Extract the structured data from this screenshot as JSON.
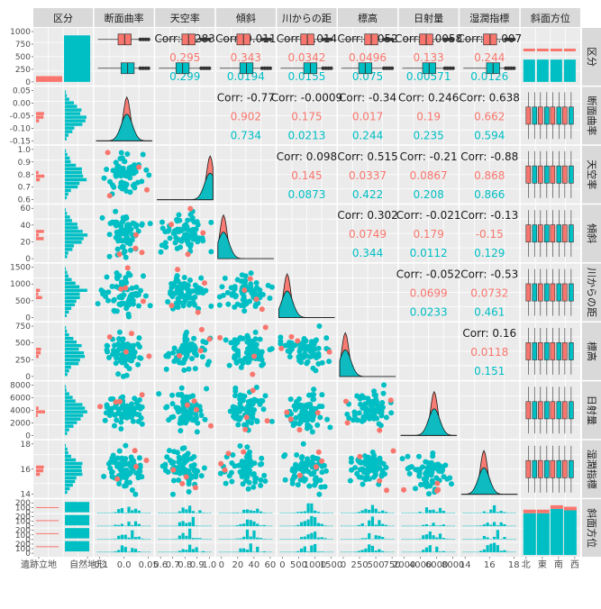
{
  "chart_data": {
    "type": "scatter",
    "title": "",
    "variables": [
      "区分",
      "断面曲率",
      "天空率",
      "傾斜",
      "川からの距",
      "標高",
      "日射量",
      "湿潤指標",
      "斜面方位"
    ],
    "strip_labels_top": [
      "区分",
      "断面曲率",
      "天空率",
      "傾斜",
      "川からの距",
      "標高",
      "日射量",
      "湿潤指標",
      "斜面方位"
    ],
    "strip_labels_right": [
      "区分",
      "断面曲率",
      "天空率",
      "傾斜",
      "川からの距",
      "標高",
      "日射量",
      "湿潤指標",
      "斜面方位"
    ],
    "groups": [
      "遺跡立地",
      "自然地形"
    ],
    "group_counts": [
      120,
      970
    ],
    "colors": {
      "group1": "#F8766D",
      "group2": "#00BFC4",
      "panel": "#EBEBEB",
      "strip": "#D9D9D9",
      "grid": "#FFFFFF"
    },
    "aspect_categories": [
      "北",
      "東",
      "南",
      "西"
    ],
    "y_ticks": [
      [
        "1000",
        "750",
        "500",
        "250",
        "0"
      ],
      [
        "0.05",
        "0.00",
        "-0.05",
        "-0.10",
        "-0.15"
      ],
      [
        "1.0",
        "0.9",
        "0.8",
        "0.7",
        "0.6"
      ],
      [
        "60",
        "40",
        "20",
        "0"
      ],
      [
        "1500",
        "1000",
        "500",
        "0"
      ],
      [
        "750",
        "500",
        "250",
        "0"
      ],
      [
        "8000",
        "6000",
        "4000",
        "2000",
        "0"
      ],
      [
        "18",
        "16",
        "14"
      ],
      [
        "200",
        "100",
        "0",
        "200",
        "100",
        "0",
        "200",
        "100",
        "0",
        "200",
        "100",
        "0"
      ]
    ],
    "x_ticks": [
      [
        "遺跡立地",
        "自然地形"
      ],
      [
        "-0.1",
        "0.0",
        "0.05"
      ],
      [
        "0.6",
        "0.7",
        "0.8",
        "0.9",
        "1.0"
      ],
      [
        "0",
        "20",
        "40",
        "60"
      ],
      [
        "0",
        "500",
        "1000",
        "1500"
      ],
      [
        "0",
        "250",
        "500",
        "750"
      ],
      [
        "2000",
        "4000",
        "6000",
        "8000"
      ],
      [
        "14",
        "16",
        "18"
      ],
      [
        "北",
        "東",
        "南",
        "西"
      ]
    ],
    "correlations": [
      {
        "row": 1,
        "col": 2,
        "total": "Corr: 0.283",
        "g1": "0.295",
        "g2": "0.299"
      },
      {
        "row": 1,
        "col": 3,
        "total": "Corr: 0.011",
        "g1": "0.343",
        "g2": "0.0194"
      },
      {
        "row": 1,
        "col": 4,
        "total": "Corr: 0.014",
        "g1": "0.0342",
        "g2": "0.0155"
      },
      {
        "row": 1,
        "col": 5,
        "total": "Corr: 0.052",
        "g1": "0.0496",
        "g2": "0.075"
      },
      {
        "row": 1,
        "col": 6,
        "total": "Corr: 0.0058",
        "g1": "0.133",
        "g2": "0.00571"
      },
      {
        "row": 1,
        "col": 7,
        "total": "Corr: -0.007",
        "g1": "0.244",
        "g2": "0.0126"
      },
      {
        "row": 2,
        "col": 3,
        "total": "Corr: -0.77",
        "g1": "0.902",
        "g2": "0.734"
      },
      {
        "row": 2,
        "col": 4,
        "total": "Corr: -0.0009",
        "g1": "0.175",
        "g2": "0.0213"
      },
      {
        "row": 2,
        "col": 5,
        "total": "Corr: -0.34",
        "g1": "0.017",
        "g2": "0.244"
      },
      {
        "row": 2,
        "col": 6,
        "total": "Corr: 0.246",
        "g1": "0.19",
        "g2": "0.235"
      },
      {
        "row": 2,
        "col": 7,
        "total": "Corr: 0.638",
        "g1": "0.662",
        "g2": "0.594"
      },
      {
        "row": 3,
        "col": 4,
        "total": "Corr: 0.098",
        "g1": "0.145",
        "g2": "0.0873"
      },
      {
        "row": 3,
        "col": 5,
        "total": "Corr: 0.515",
        "g1": "0.0337",
        "g2": "0.422"
      },
      {
        "row": 3,
        "col": 6,
        "total": "Corr: -0.21",
        "g1": "0.0867",
        "g2": "0.208"
      },
      {
        "row": 3,
        "col": 7,
        "total": "Corr: -0.88",
        "g1": "0.868",
        "g2": "0.866"
      },
      {
        "row": 4,
        "col": 5,
        "total": "Corr: 0.302",
        "g1": "0.0749",
        "g2": "0.344"
      },
      {
        "row": 4,
        "col": 6,
        "total": "Corr: -0.021",
        "g1": "0.179",
        "g2": "0.0112"
      },
      {
        "row": 4,
        "col": 7,
        "total": "Corr: -0.13",
        "g1": "-0.15",
        "g2": "0.129"
      },
      {
        "row": 5,
        "col": 6,
        "total": "Corr: -0.052",
        "g1": "0.0699",
        "g2": "0.0233"
      },
      {
        "row": 5,
        "col": 7,
        "total": "Corr: -0.53",
        "g1": "0.0732",
        "g2": "0.461"
      },
      {
        "row": 6,
        "col": 7,
        "total": "Corr: 0.16",
        "g1": "0.0118",
        "g2": "0.151"
      }
    ]
  }
}
